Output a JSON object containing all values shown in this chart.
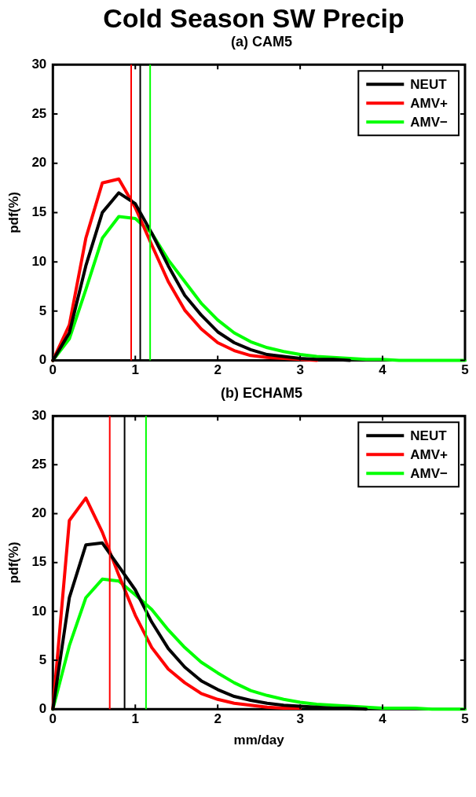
{
  "chart_data": [
    {
      "type": "line",
      "title": "Cold Season SW Precip",
      "subtitle": "(a) CAM5",
      "ylabel": "pdf(%)",
      "x": [
        0,
        0.2,
        0.4,
        0.6,
        0.8,
        1.0,
        1.2,
        1.4,
        1.6,
        1.8,
        2.0,
        2.2,
        2.4,
        2.6,
        2.8,
        3.0,
        3.2,
        3.4,
        3.6,
        3.8,
        4.0,
        4.2,
        4.4,
        4.6,
        4.8,
        5.0
      ],
      "series": [
        {
          "name": "NEUT",
          "color": "#000000",
          "values": [
            0,
            2.8,
            9.6,
            15.0,
            17.0,
            15.9,
            12.9,
            9.6,
            6.6,
            4.6,
            2.9,
            1.8,
            1.1,
            0.6,
            0.4,
            0.2,
            0.1,
            0.1,
            0,
            null,
            null,
            null,
            null,
            null,
            null,
            null
          ]
        },
        {
          "name": "AMV+",
          "color": "#ff0000",
          "values": [
            0,
            3.6,
            12.4,
            18.0,
            18.4,
            15.5,
            11.7,
            8.0,
            5.1,
            3.2,
            1.8,
            1.0,
            0.5,
            0.3,
            0.2,
            0.1,
            0,
            null,
            null,
            null,
            null,
            null,
            null,
            null,
            null,
            null
          ]
        },
        {
          "name": "AMV−",
          "color": "#00ff00",
          "values": [
            0,
            2.2,
            7.2,
            12.4,
            14.6,
            14.4,
            12.9,
            10.2,
            8.0,
            5.8,
            4.1,
            2.8,
            1.9,
            1.3,
            0.9,
            0.6,
            0.4,
            0.3,
            0.2,
            0.1,
            0.1,
            0,
            0,
            0,
            0,
            0
          ]
        }
      ],
      "xlim": [
        0,
        5
      ],
      "xticks": [
        0,
        1,
        2,
        3,
        4,
        5
      ],
      "ylim": [
        0,
        30
      ],
      "yticks": [
        0,
        5,
        10,
        15,
        20,
        25,
        30
      ],
      "ref_lines": [
        {
          "axis": "x",
          "value": 0.95,
          "color": "#ff0000"
        },
        {
          "axis": "x",
          "value": 1.06,
          "color": "#000000"
        },
        {
          "axis": "x",
          "value": 1.18,
          "color": "#00ff00"
        }
      ],
      "legend": "top right",
      "marker": "none",
      "line_style": "solid",
      "grid": false
    },
    {
      "type": "line",
      "subtitle": "(b) ECHAM5",
      "xlabel": "mm/day",
      "ylabel": "pdf(%)",
      "x": [
        0,
        0.2,
        0.4,
        0.6,
        0.8,
        1.0,
        1.2,
        1.4,
        1.6,
        1.8,
        2.0,
        2.2,
        2.4,
        2.6,
        2.8,
        3.0,
        3.2,
        3.4,
        3.6,
        3.8,
        4.0,
        4.2,
        4.4,
        4.6,
        4.8,
        5.0
      ],
      "series": [
        {
          "name": "NEUT",
          "color": "#000000",
          "values": [
            0,
            11.4,
            16.8,
            17.0,
            14.6,
            12.2,
            8.9,
            6.2,
            4.3,
            2.9,
            2.0,
            1.3,
            0.9,
            0.6,
            0.4,
            0.3,
            0.2,
            0.1,
            0.1,
            0,
            null,
            null,
            null,
            null,
            null,
            null
          ]
        },
        {
          "name": "AMV+",
          "color": "#ff0000",
          "values": [
            0,
            19.3,
            21.6,
            18.1,
            13.7,
            9.6,
            6.3,
            4.1,
            2.7,
            1.6,
            1.0,
            0.6,
            0.4,
            0.2,
            0.1,
            0.1,
            null,
            null,
            null,
            null,
            null,
            null,
            null,
            null,
            null,
            null
          ]
        },
        {
          "name": "AMV−",
          "color": "#00ff00",
          "values": [
            0,
            6.5,
            11.4,
            13.3,
            13.1,
            11.7,
            10.2,
            8.1,
            6.3,
            4.8,
            3.7,
            2.7,
            1.9,
            1.4,
            1.0,
            0.7,
            0.5,
            0.4,
            0.3,
            0.2,
            0.1,
            0.1,
            0.1,
            0,
            0,
            0
          ]
        }
      ],
      "xlim": [
        0,
        5
      ],
      "xticks": [
        0,
        1,
        2,
        3,
        4,
        5
      ],
      "ylim": [
        0,
        30
      ],
      "yticks": [
        0,
        5,
        10,
        15,
        20,
        25,
        30
      ],
      "ref_lines": [
        {
          "axis": "x",
          "value": 0.69,
          "color": "#ff0000"
        },
        {
          "axis": "x",
          "value": 0.87,
          "color": "#000000"
        },
        {
          "axis": "x",
          "value": 1.13,
          "color": "#00ff00"
        }
      ],
      "legend": "top right",
      "marker": "none",
      "line_style": "solid",
      "grid": false
    }
  ]
}
